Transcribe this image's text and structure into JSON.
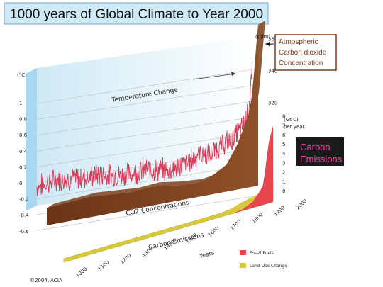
{
  "chart_data": {
    "type": "line",
    "title": "1000 years of Global Climate to Year 2000",
    "temperature": {
      "label": "Temperature Change",
      "unit": "(°C)",
      "ticks": [
        1,
        0.8,
        0.6,
        0.4,
        0.2,
        0,
        -0.2,
        -0.4,
        -0.6
      ],
      "ylim": [
        -0.6,
        1.1
      ],
      "mean_by_year": [
        [
          1000,
          -0.05
        ],
        [
          1100,
          0.0
        ],
        [
          1200,
          -0.03
        ],
        [
          1300,
          -0.02
        ],
        [
          1400,
          -0.08
        ],
        [
          1500,
          -0.05
        ],
        [
          1600,
          -0.1
        ],
        [
          1700,
          -0.05
        ],
        [
          1750,
          0.05
        ],
        [
          1800,
          0.0
        ],
        [
          1850,
          0.1
        ],
        [
          1900,
          0.15
        ],
        [
          1950,
          0.28
        ],
        [
          1980,
          0.45
        ],
        [
          2000,
          0.95
        ]
      ]
    },
    "co2": {
      "label": "CO2 Concentrations",
      "unit": "(ppm)",
      "ticks": [
        320,
        340,
        360
      ],
      "callout": [
        "Atmospheric",
        "Carbon dioxide",
        "Concentration"
      ],
      "series": [
        [
          1000,
          279
        ],
        [
          1100,
          280
        ],
        [
          1200,
          281
        ],
        [
          1300,
          280
        ],
        [
          1400,
          279
        ],
        [
          1500,
          280
        ],
        [
          1600,
          278
        ],
        [
          1700,
          277
        ],
        [
          1750,
          278
        ],
        [
          1800,
          281
        ],
        [
          1850,
          285
        ],
        [
          1900,
          296
        ],
        [
          1925,
          304
        ],
        [
          1950,
          312
        ],
        [
          1960,
          317
        ],
        [
          1970,
          325
        ],
        [
          1980,
          338
        ],
        [
          1990,
          354
        ],
        [
          2000,
          369
        ]
      ]
    },
    "carbon_emissions": {
      "label": "Carbon Emissions",
      "unit": [
        "(Gt C)",
        "per year"
      ],
      "ticks": [
        8,
        7,
        6,
        5,
        4,
        3,
        2,
        1,
        0
      ],
      "callout": [
        "Carbon",
        "Emissions"
      ],
      "series": [
        {
          "name": "Fossil Fuels",
          "color": "#e8464f",
          "points": [
            [
              1750,
              0
            ],
            [
              1800,
              0
            ],
            [
              1850,
              0.1
            ],
            [
              1900,
              0.5
            ],
            [
              1925,
              1.0
            ],
            [
              1950,
              1.6
            ],
            [
              1960,
              2.6
            ],
            [
              1970,
              4.0
            ],
            [
              1980,
              5.3
            ],
            [
              1990,
              6.0
            ],
            [
              2000,
              6.6
            ]
          ]
        },
        {
          "name": "Land-Use Change",
          "color": "#d6c93a",
          "points": [
            [
              1750,
              0.1
            ],
            [
              1800,
              0.2
            ],
            [
              1850,
              0.5
            ],
            [
              1900,
              0.7
            ],
            [
              1925,
              0.8
            ],
            [
              1950,
              1.0
            ],
            [
              1960,
              1.1
            ],
            [
              1970,
              1.2
            ],
            [
              1980,
              1.3
            ],
            [
              1990,
              1.5
            ],
            [
              2000,
              1.6
            ]
          ]
        }
      ]
    },
    "x_axis": {
      "label": "Years",
      "ticks": [
        1000,
        1100,
        1200,
        1300,
        1400,
        1500,
        1600,
        1700,
        1800,
        1900,
        2000
      ]
    },
    "credit": "©2004, ACIA",
    "colors": {
      "temperature_line": "#d83a57",
      "co2_front": "#7a3a1c",
      "co2_top": "#8d5a3a",
      "backdrop_edge": "#a9d8ee",
      "callout_border": "#7a3a1c",
      "callout_bg": "#1a1a1a",
      "callout_text": "#ff3ea7"
    }
  }
}
